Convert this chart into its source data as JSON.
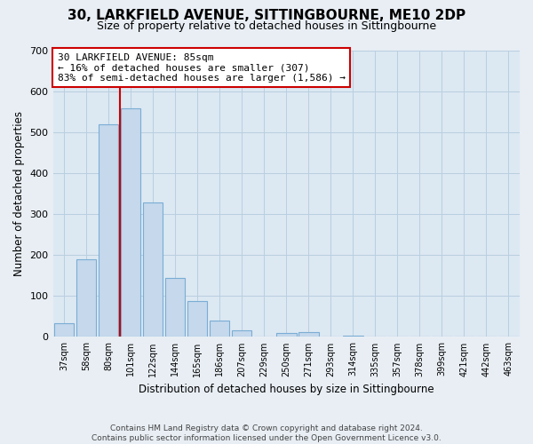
{
  "title": "30, LARKFIELD AVENUE, SITTINGBOURNE, ME10 2DP",
  "subtitle": "Size of property relative to detached houses in Sittingbourne",
  "xlabel": "Distribution of detached houses by size in Sittingbourne",
  "ylabel": "Number of detached properties",
  "bar_labels": [
    "37sqm",
    "58sqm",
    "80sqm",
    "101sqm",
    "122sqm",
    "144sqm",
    "165sqm",
    "186sqm",
    "207sqm",
    "229sqm",
    "250sqm",
    "271sqm",
    "293sqm",
    "314sqm",
    "335sqm",
    "357sqm",
    "378sqm",
    "399sqm",
    "421sqm",
    "442sqm",
    "463sqm"
  ],
  "bar_values": [
    33,
    190,
    519,
    557,
    329,
    144,
    87,
    41,
    17,
    0,
    9,
    11,
    0,
    3,
    0,
    0,
    0,
    0,
    0,
    0,
    0
  ],
  "bar_color": "#c5d8ec",
  "bar_edge_color": "#7aadd4",
  "property_line_label": "30 LARKFIELD AVENUE: 85sqm",
  "annotation_line1": "← 16% of detached houses are smaller (307)",
  "annotation_line2": "83% of semi-detached houses are larger (1,586) →",
  "ylim": [
    0,
    700
  ],
  "yticks": [
    0,
    100,
    200,
    300,
    400,
    500,
    600,
    700
  ],
  "footer_line1": "Contains HM Land Registry data © Crown copyright and database right 2024.",
  "footer_line2": "Contains public sector information licensed under the Open Government Licence v3.0.",
  "background_color": "#e8eef4",
  "plot_bg_color": "#dce8f2",
  "grid_color": "#b8cfe0",
  "annotation_box_color": "#ffffff",
  "annotation_box_edge": "#cc0000",
  "property_line_color": "#cc0000",
  "title_fontsize": 11,
  "subtitle_fontsize": 9
}
